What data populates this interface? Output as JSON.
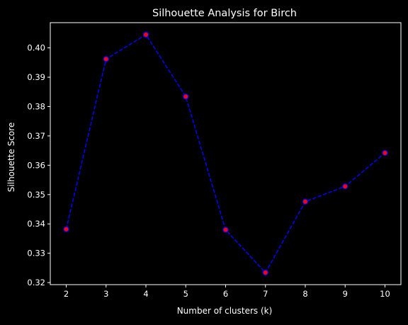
{
  "chart_data": {
    "type": "line",
    "title": "Silhouette Analysis for Birch",
    "xlabel": "Number of clusters (k)",
    "ylabel": "Silhouette Score",
    "x": [
      2,
      3,
      4,
      5,
      6,
      7,
      8,
      9,
      10
    ],
    "series": [
      {
        "values": [
          0.3382,
          0.3962,
          0.4045,
          0.3834,
          0.338,
          0.3234,
          0.3476,
          0.3528,
          0.3642
        ],
        "line_color": "#0000ff",
        "line_style": "dashed",
        "marker": "circle",
        "marker_face_color": "#ff0000",
        "marker_edge_color": "#0000ff"
      }
    ],
    "xticks": [
      "2",
      "3",
      "4",
      "5",
      "6",
      "7",
      "8",
      "9",
      "10"
    ],
    "yticks": [
      "0.32",
      "0.33",
      "0.34",
      "0.35",
      "0.36",
      "0.37",
      "0.38",
      "0.39",
      "0.40"
    ],
    "xlim": [
      1.6,
      10.4
    ],
    "ylim": [
      0.3193,
      0.4086
    ],
    "grid": false,
    "background_color": "#000000",
    "text_color": "#ffffff"
  }
}
